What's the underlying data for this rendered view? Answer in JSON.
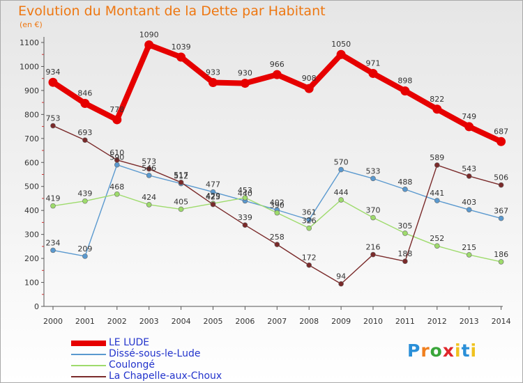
{
  "title": "Evolution du Montant de la Dette par Habitant",
  "subtitle": "(en €)",
  "chart_data": {
    "type": "line",
    "title": "Evolution du Montant de la Dette par Habitant",
    "ylabel": "(en €)",
    "xlabel": "",
    "x": [
      "2000",
      "2001",
      "2002",
      "2003",
      "2004",
      "2005",
      "2006",
      "2007",
      "2008",
      "2009",
      "2010",
      "2011",
      "2012",
      "2013",
      "2014"
    ],
    "ylim": [
      0,
      1100
    ],
    "yticks": [
      0,
      100,
      200,
      300,
      400,
      500,
      600,
      700,
      800,
      900,
      1000,
      1100
    ],
    "grid": false,
    "legend_position": "bottom-left",
    "series": [
      {
        "name": "LE LUDE",
        "color": "#e60000",
        "emphasis": true,
        "values": [
          934,
          846,
          778,
          1090,
          1039,
          933,
          930,
          966,
          908,
          1050,
          971,
          898,
          822,
          749,
          687
        ],
        "labels": [
          "934",
          "846",
          "778",
          "1090",
          "1039",
          "933",
          "930",
          "966",
          "908",
          "1050",
          "971",
          "898",
          "822",
          "749",
          "687"
        ]
      },
      {
        "name": "Dissé-sous-le-Lude",
        "color": "#5a99cf",
        "values": [
          234,
          209,
          590,
          546,
          512,
          477,
          440,
          402,
          361,
          570,
          533,
          488,
          441,
          403,
          367
        ],
        "labels": [
          "234",
          "209",
          "590",
          "546",
          "512",
          "477",
          "440",
          "402",
          "361",
          "570",
          "533",
          "488",
          "441",
          "403",
          "367"
        ]
      },
      {
        "name": "Coulongé",
        "color": "#9edb6c",
        "values": [
          419,
          439,
          468,
          424,
          405,
          429,
          453,
          390,
          326,
          444,
          370,
          305,
          252,
          215,
          186
        ],
        "labels": [
          "419",
          "439",
          "468",
          "424",
          "405",
          "429",
          "453",
          "390",
          "326",
          "444",
          "370",
          "305",
          "252",
          "215",
          "186"
        ]
      },
      {
        "name": "La Chapelle-aux-Choux",
        "color": "#7a2a2a",
        "values": [
          753,
          693,
          610,
          573,
          517,
          425,
          339,
          258,
          172,
          94,
          216,
          188,
          589,
          543,
          506
        ],
        "labels": [
          "753",
          "693",
          "610",
          "573",
          "517",
          "425",
          "339",
          "258",
          "172",
          "94",
          "216",
          "188",
          "589",
          "543",
          "506"
        ]
      }
    ]
  },
  "logo": {
    "text": "Proxiti",
    "letters": [
      "P",
      "r",
      "o",
      "x",
      "i",
      "t",
      "i"
    ]
  },
  "colors": {
    "title": "#ee7711",
    "axis": "#555555",
    "legend_text": "#2233cc"
  }
}
